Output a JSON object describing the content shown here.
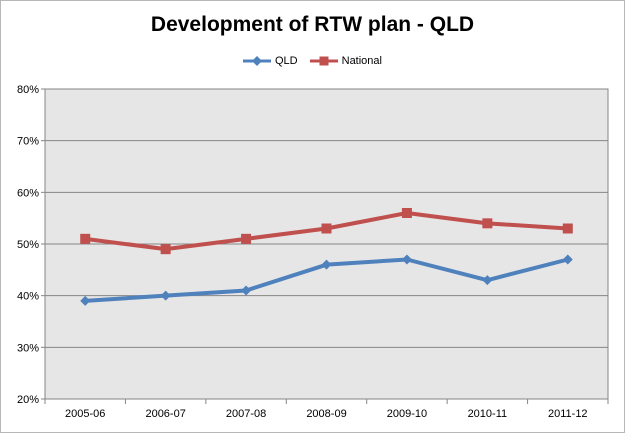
{
  "chart_data": {
    "type": "line",
    "title": "Development of RTW plan - QLD",
    "xlabel": "",
    "ylabel": "",
    "categories": [
      "2005-06",
      "2006-07",
      "2007-08",
      "2008-09",
      "2009-10",
      "2010-11",
      "2011-12"
    ],
    "series": [
      {
        "name": "QLD",
        "values": [
          39,
          40,
          41,
          46,
          47,
          43,
          47
        ],
        "color": "#4f81bd",
        "marker": "diamond"
      },
      {
        "name": "National",
        "values": [
          51,
          49,
          51,
          53,
          56,
          54,
          53
        ],
        "color": "#c0504d",
        "marker": "square"
      }
    ],
    "ylim": [
      20,
      80
    ],
    "yticks": [
      20,
      30,
      40,
      50,
      60,
      70,
      80
    ],
    "ytick_labels": [
      "20%",
      "30%",
      "40%",
      "50%",
      "60%",
      "70%",
      "80%"
    ],
    "grid": true,
    "legend_position": "top",
    "plot_background": "#e6e6e6"
  }
}
